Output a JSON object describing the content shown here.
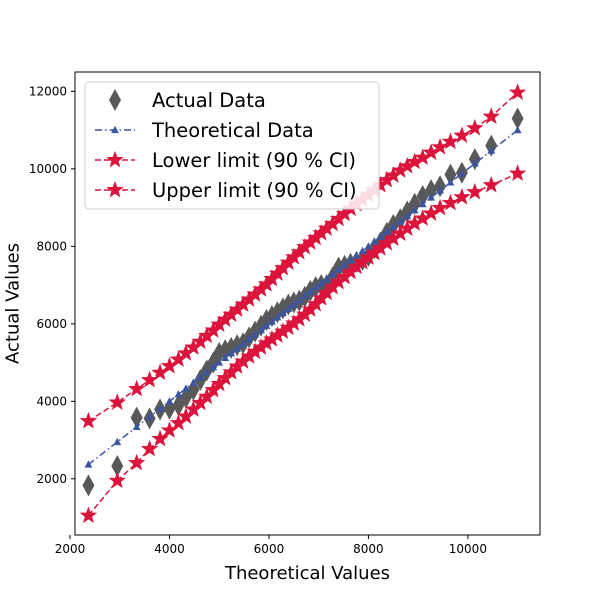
{
  "chart_data": {
    "type": "scatter",
    "title": "",
    "xlabel": "Theoretical Values",
    "ylabel": "Actual Values",
    "xlim": [
      2100,
      11450
    ],
    "ylim": [
      550,
      12500
    ],
    "xticks": [
      2000,
      4000,
      6000,
      8000,
      10000
    ],
    "yticks": [
      2000,
      4000,
      6000,
      8000,
      10000,
      12000
    ],
    "xtick_labels": [
      "2000",
      "4000",
      "6000",
      "8000",
      "10000"
    ],
    "ytick_labels": [
      "2000",
      "4000",
      "6000",
      "8000",
      "10000",
      "12000"
    ],
    "grid": false,
    "legend_position": "top-left",
    "x": [
      2370,
      2950,
      3340,
      3600,
      3810,
      4000,
      4180,
      4330,
      4480,
      4620,
      4750,
      4880,
      5000,
      5120,
      5240,
      5360,
      5480,
      5600,
      5720,
      5840,
      5950,
      6060,
      6170,
      6280,
      6390,
      6500,
      6610,
      6720,
      6830,
      6940,
      7050,
      7160,
      7280,
      7400,
      7520,
      7640,
      7760,
      7880,
      8000,
      8120,
      8240,
      8370,
      8500,
      8640,
      8780,
      8930,
      9090,
      9260,
      9440,
      9650,
      9880,
      10140,
      10470,
      11000
    ],
    "series": [
      {
        "name": "Actual Data",
        "color": "#595959",
        "marker": "thin_diamond",
        "values": [
          1830,
          2330,
          3580,
          3560,
          3790,
          3810,
          3900,
          4100,
          4300,
          4550,
          4800,
          5000,
          5250,
          5320,
          5380,
          5450,
          5500,
          5650,
          5800,
          5950,
          6100,
          6200,
          6300,
          6400,
          6500,
          6550,
          6600,
          6700,
          6850,
          6950,
          7000,
          7000,
          7200,
          7450,
          7500,
          7550,
          7600,
          7650,
          7750,
          7950,
          8100,
          8350,
          8550,
          8700,
          8900,
          9100,
          9300,
          9450,
          9550,
          9850,
          9900,
          10250,
          10600,
          11300
        ]
      },
      {
        "name": "Theoretical Data",
        "color": "#3a55a4",
        "marker": "triangle",
        "values": [
          2370,
          2950,
          3340,
          3600,
          3810,
          4000,
          4180,
          4330,
          4480,
          4620,
          4750,
          4880,
          5000,
          5120,
          5240,
          5360,
          5480,
          5600,
          5720,
          5840,
          5950,
          6060,
          6170,
          6280,
          6390,
          6500,
          6610,
          6720,
          6830,
          6940,
          7050,
          7160,
          7280,
          7400,
          7520,
          7640,
          7760,
          7880,
          8000,
          8120,
          8240,
          8370,
          8500,
          8640,
          8780,
          8930,
          9090,
          9260,
          9440,
          9650,
          9880,
          10140,
          10470,
          11000
        ]
      },
      {
        "name": "Lower limit (90 % CI)",
        "color": "#dc143c",
        "marker": "star",
        "values": [
          1050,
          1950,
          2410,
          2770,
          3030,
          3250,
          3440,
          3610,
          3790,
          3960,
          4120,
          4290,
          4450,
          4600,
          4750,
          4900,
          5030,
          5160,
          5280,
          5390,
          5500,
          5600,
          5700,
          5800,
          5900,
          6010,
          6120,
          6240,
          6370,
          6510,
          6660,
          6800,
          6950,
          7080,
          7210,
          7340,
          7470,
          7590,
          7710,
          7830,
          7950,
          8080,
          8200,
          8330,
          8460,
          8590,
          8720,
          8850,
          8990,
          9120,
          9270,
          9400,
          9580,
          9880
        ]
      },
      {
        "name": "Upper limit (90 % CI)",
        "color": "#dc143c",
        "marker": "star",
        "values": [
          3490,
          3970,
          4320,
          4550,
          4740,
          4910,
          5080,
          5240,
          5390,
          5540,
          5690,
          5830,
          5980,
          6110,
          6240,
          6370,
          6500,
          6630,
          6760,
          6890,
          7020,
          7160,
          7300,
          7440,
          7580,
          7720,
          7850,
          7980,
          8100,
          8220,
          8340,
          8460,
          8580,
          8710,
          8840,
          8970,
          9090,
          9210,
          9330,
          9450,
          9580,
          9710,
          9830,
          9960,
          10070,
          10180,
          10290,
          10420,
          10560,
          10700,
          10860,
          11050,
          11350,
          11970
        ]
      }
    ]
  }
}
